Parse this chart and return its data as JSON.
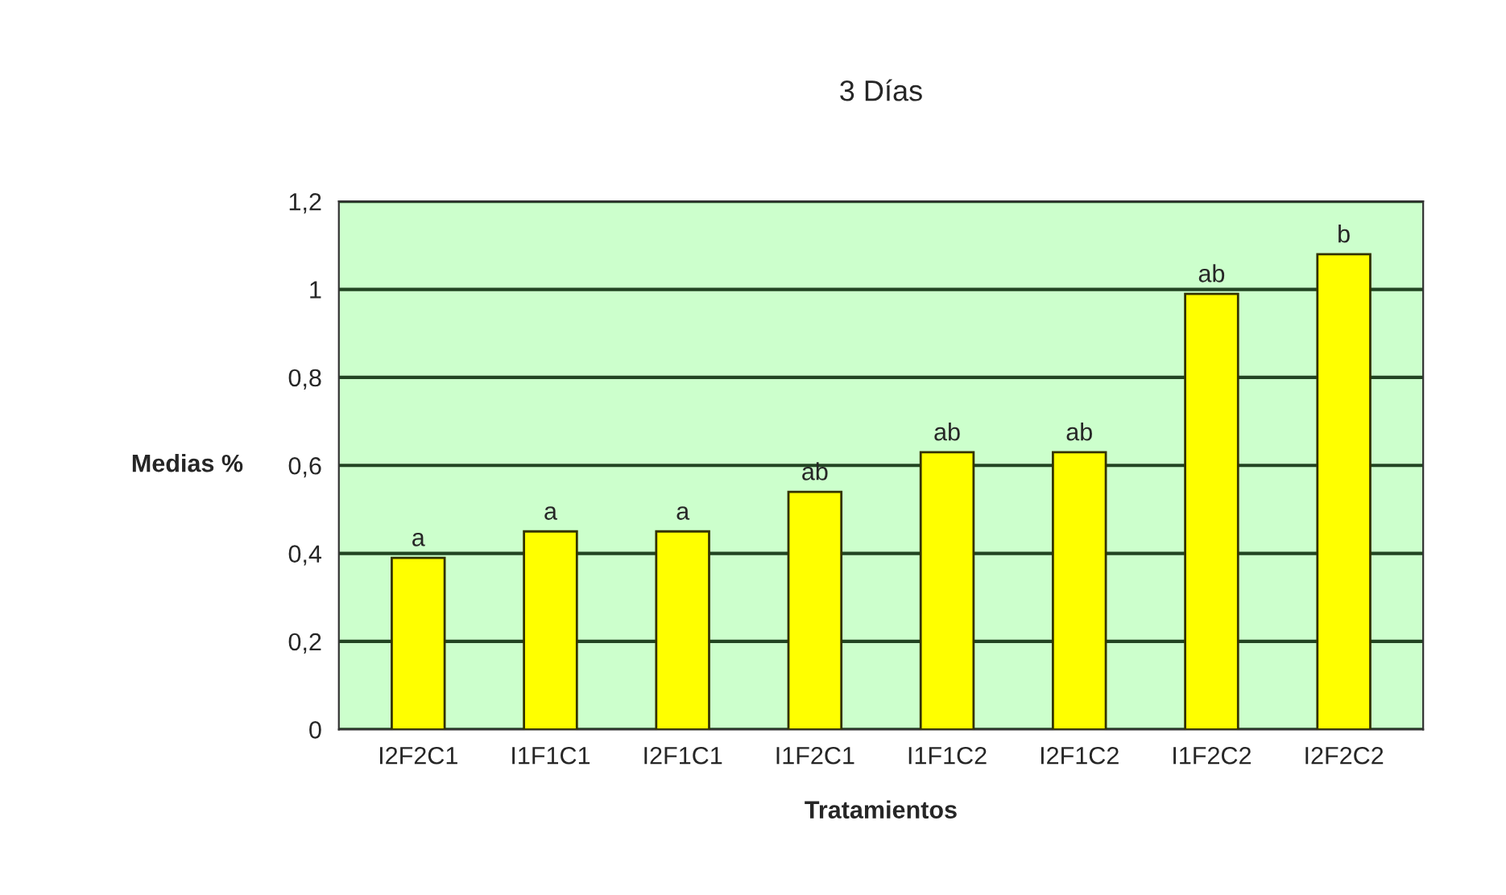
{
  "chart_data": {
    "type": "bar",
    "title": "3 Días",
    "xlabel": "Tratamientos",
    "ylabel": "Medias %",
    "categories": [
      "I2F2C1",
      "I1F1C1",
      "I2F1C1",
      "I1F2C1",
      "I1F1C2",
      "I2F1C2",
      "I1F2C2",
      "I2F2C2"
    ],
    "values": [
      0.39,
      0.45,
      0.45,
      0.54,
      0.63,
      0.63,
      0.99,
      1.08
    ],
    "value_labels": [
      "a",
      "a",
      "a",
      "ab",
      "ab",
      "ab",
      "ab",
      "b"
    ],
    "color": "#ffff00",
    "ylim": [
      0,
      1.2
    ],
    "yticks": [
      {
        "value": 0,
        "label": "0"
      },
      {
        "value": 0.2,
        "label": "0,2"
      },
      {
        "value": 0.4,
        "label": "0,4"
      },
      {
        "value": 0.6,
        "label": "0,6"
      },
      {
        "value": 0.8,
        "label": "0,8"
      },
      {
        "value": 1,
        "label": "1"
      },
      {
        "value": 1.2,
        "label": "1,2"
      }
    ],
    "grid": "y"
  }
}
